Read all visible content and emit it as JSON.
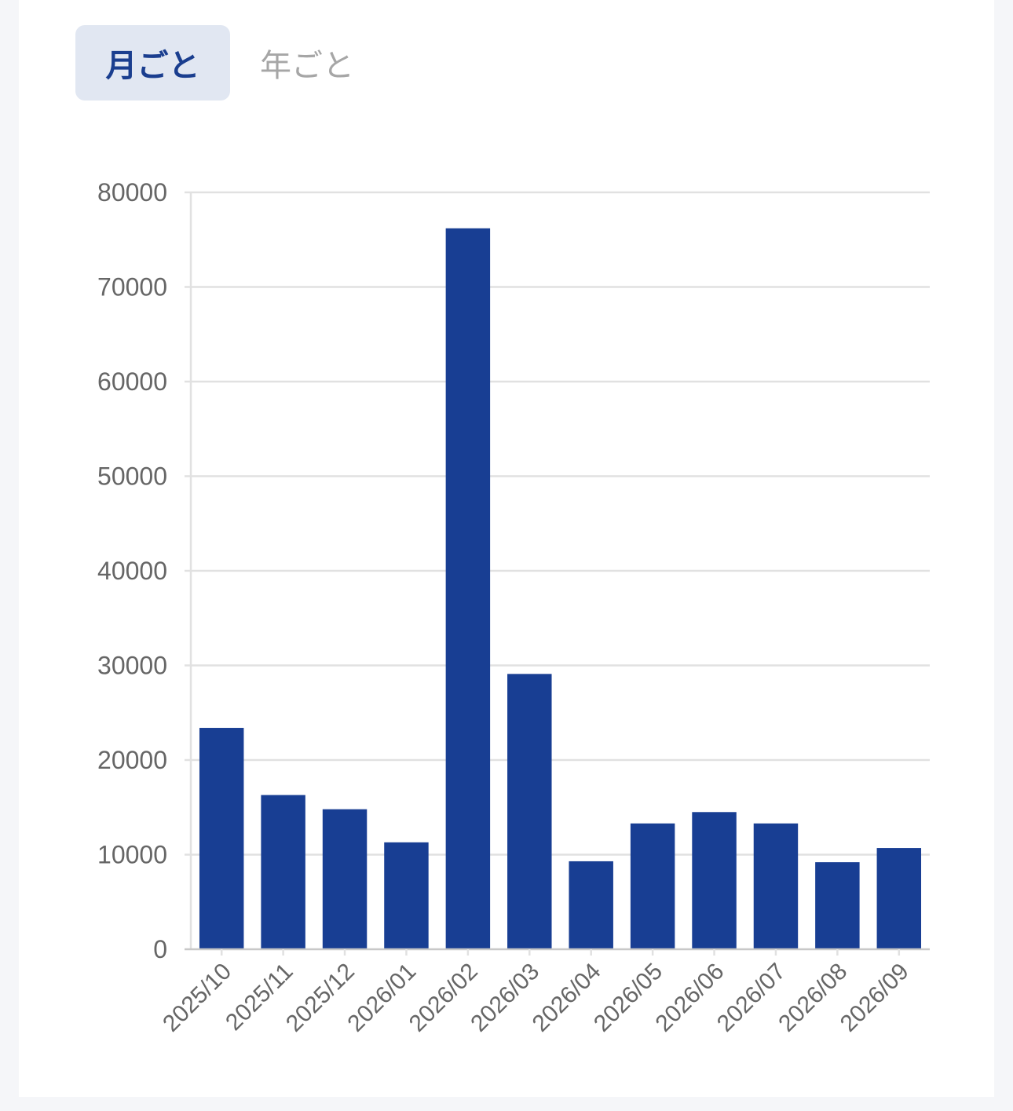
{
  "tabs": {
    "monthly_label": "月ごと",
    "yearly_label": "年ごと"
  },
  "colors": {
    "bar": "#183e93",
    "grid": "#e1e1e1",
    "axis": "#c8c8c8"
  },
  "chart_data": {
    "type": "bar",
    "title": "",
    "xlabel": "",
    "ylabel": "",
    "ylim": [
      0,
      80000
    ],
    "yticks": [
      0,
      10000,
      20000,
      30000,
      40000,
      50000,
      60000,
      70000,
      80000
    ],
    "grid": true,
    "categories": [
      "2025/10",
      "2025/11",
      "2025/12",
      "2026/01",
      "2026/02",
      "2026/03",
      "2026/04",
      "2026/05",
      "2026/06",
      "2026/07",
      "2026/08",
      "2026/09"
    ],
    "values": [
      23400,
      16300,
      14800,
      11300,
      76200,
      29100,
      9300,
      13300,
      14500,
      13300,
      9200,
      10700
    ]
  }
}
